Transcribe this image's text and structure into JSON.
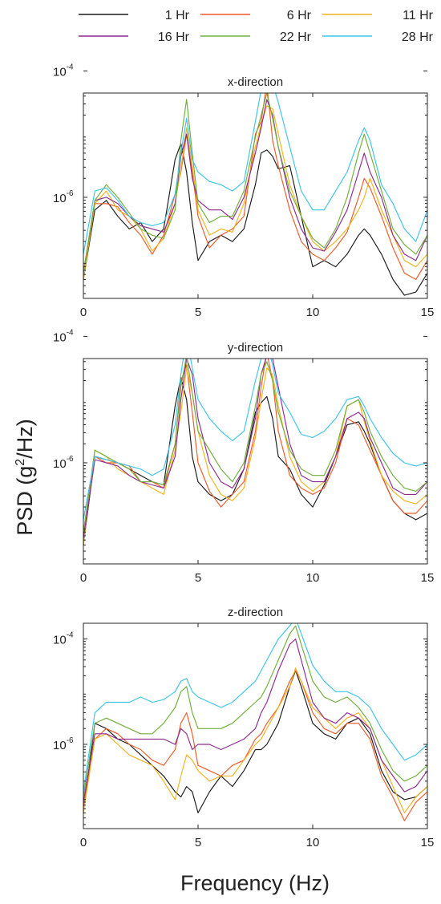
{
  "legend": {
    "entries": [
      {
        "name": "1 Hr",
        "color": "#1a1a1a"
      },
      {
        "name": "6 Hr",
        "color": "#ee5a28"
      },
      {
        "name": "11 Hr",
        "color": "#f2b21c"
      },
      {
        "name": "16 Hr",
        "color": "#8e2a8f"
      },
      {
        "name": "22 Hr",
        "color": "#6fae3a"
      },
      {
        "name": "28 Hr",
        "color": "#3cc4e8"
      }
    ]
  },
  "axes": {
    "ylabel": "PSD (g²/Hz)",
    "ylabel_base": "PSD (g",
    "ylabel_sup": "2",
    "ylabel_tail": "/Hz)",
    "xlabel": "Frequency (Hz)"
  },
  "chart_data": [
    {
      "type": "line",
      "title": "x-direction",
      "xlim": [
        0,
        15
      ],
      "ylim_log10": [
        -7.6,
        -4.35
      ],
      "y_scale": "log",
      "xticks": [
        0,
        5,
        10,
        15
      ],
      "yticks": [
        {
          "base": "10",
          "exp": "-6",
          "log10": -6
        },
        {
          "base": "10",
          "exp": "-4",
          "log10": -4
        }
      ],
      "x": [
        0,
        0.5,
        1,
        1.5,
        2,
        2.5,
        3,
        3.5,
        4,
        4.25,
        4.5,
        4.75,
        5,
        5.5,
        6,
        6.5,
        7,
        7.5,
        7.75,
        8,
        8.25,
        8.5,
        9,
        9.5,
        10,
        10.5,
        11,
        11.5,
        12,
        12.25,
        12.5,
        13,
        13.5,
        14,
        14.5,
        15
      ],
      "series": [
        {
          "name": "1 Hr",
          "log10_psd": [
            -7.3,
            -6.2,
            -6.05,
            -6.3,
            -6.5,
            -6.4,
            -6.7,
            -6.5,
            -5.4,
            -5.15,
            -5.6,
            -6.4,
            -7.0,
            -6.7,
            -6.6,
            -6.7,
            -6.5,
            -5.8,
            -5.3,
            -5.25,
            -5.35,
            -5.55,
            -5.5,
            -6.3,
            -7.1,
            -7.0,
            -7.1,
            -6.9,
            -6.6,
            -6.5,
            -6.6,
            -6.9,
            -7.3,
            -7.55,
            -7.5,
            -7.2
          ]
        },
        {
          "name": "6 Hr",
          "log10_psd": [
            -7.2,
            -6.1,
            -6.1,
            -6.15,
            -6.4,
            -6.6,
            -6.9,
            -6.6,
            -5.95,
            -5.6,
            -5.0,
            -5.6,
            -6.3,
            -6.8,
            -6.6,
            -6.5,
            -6.3,
            -5.0,
            -4.8,
            -4.2,
            -5.1,
            -5.5,
            -6.2,
            -6.7,
            -6.9,
            -7.0,
            -6.8,
            -6.55,
            -6.0,
            -5.7,
            -5.85,
            -6.3,
            -6.8,
            -7.2,
            -7.3,
            -7.0
          ]
        },
        {
          "name": "11 Hr",
          "log10_psd": [
            -7.3,
            -6.1,
            -5.9,
            -6.2,
            -6.3,
            -6.5,
            -6.85,
            -6.65,
            -6.1,
            -5.55,
            -4.9,
            -5.5,
            -6.2,
            -6.6,
            -6.5,
            -6.55,
            -6.1,
            -5.2,
            -4.85,
            -4.55,
            -4.6,
            -5.0,
            -5.8,
            -6.3,
            -6.7,
            -6.85,
            -6.7,
            -6.5,
            -6.2,
            -6.0,
            -5.7,
            -6.2,
            -6.6,
            -7.0,
            -7.1,
            -6.9
          ]
        },
        {
          "name": "16 Hr",
          "log10_psd": [
            -7.2,
            -6.05,
            -6.0,
            -6.1,
            -6.3,
            -6.45,
            -6.5,
            -6.55,
            -6.1,
            -5.35,
            -5.0,
            -5.7,
            -6.05,
            -6.2,
            -6.2,
            -6.35,
            -6.0,
            -5.3,
            -4.9,
            -4.45,
            -4.7,
            -5.2,
            -6.0,
            -6.5,
            -6.8,
            -6.85,
            -6.55,
            -6.2,
            -5.6,
            -5.3,
            -5.6,
            -6.0,
            -6.6,
            -6.9,
            -7.0,
            -6.6
          ]
        },
        {
          "name": "22 Hr",
          "log10_psd": [
            -7.2,
            -6.05,
            -5.8,
            -6.0,
            -6.25,
            -6.5,
            -6.6,
            -6.65,
            -6.2,
            -5.1,
            -4.45,
            -5.3,
            -6.1,
            -6.4,
            -6.3,
            -6.3,
            -5.9,
            -5.05,
            -4.7,
            -4.35,
            -4.75,
            -5.2,
            -5.9,
            -6.3,
            -6.65,
            -6.8,
            -6.5,
            -6.0,
            -5.3,
            -5.0,
            -5.3,
            -5.9,
            -6.5,
            -6.75,
            -6.9,
            -6.6
          ]
        },
        {
          "name": "28 Hr",
          "log10_psd": [
            -6.9,
            -5.9,
            -5.85,
            -6.05,
            -6.3,
            -6.4,
            -6.45,
            -6.4,
            -5.95,
            -5.3,
            -4.75,
            -5.4,
            -5.6,
            -5.75,
            -5.8,
            -5.9,
            -5.75,
            -4.8,
            -4.3,
            -4.0,
            -4.2,
            -4.5,
            -5.2,
            -5.9,
            -6.2,
            -6.2,
            -5.9,
            -5.6,
            -5.1,
            -4.9,
            -5.1,
            -5.8,
            -6.1,
            -6.5,
            -6.7,
            -6.2
          ]
        }
      ]
    },
    {
      "type": "line",
      "title": "y-direction",
      "xlim": [
        0,
        15
      ],
      "ylim_log10": [
        -7.6,
        -4.35
      ],
      "y_scale": "log",
      "xticks": [
        0,
        5,
        10,
        15
      ],
      "yticks": [
        {
          "base": "10",
          "exp": "-6",
          "log10": -6
        },
        {
          "base": "10",
          "exp": "-4",
          "log10": -4
        }
      ],
      "x": [
        0,
        0.5,
        1,
        1.5,
        2,
        2.5,
        3,
        3.5,
        4,
        4.25,
        4.5,
        4.75,
        5,
        5.5,
        6,
        6.5,
        7,
        7.5,
        7.75,
        8,
        8.25,
        8.5,
        9,
        9.5,
        10,
        10.5,
        11,
        11.5,
        12,
        12.25,
        12.5,
        13,
        13.5,
        14,
        14.5,
        15
      ],
      "series": [
        {
          "name": "1 Hr",
          "log10_psd": [
            -7.3,
            -5.9,
            -5.95,
            -6.0,
            -6.1,
            -6.2,
            -6.3,
            -6.35,
            -5.1,
            -4.65,
            -5.0,
            -5.9,
            -6.3,
            -6.5,
            -6.6,
            -6.5,
            -6.1,
            -5.2,
            -5.05,
            -4.95,
            -5.3,
            -5.9,
            -6.1,
            -6.5,
            -6.7,
            -6.35,
            -5.9,
            -5.4,
            -5.35,
            -5.5,
            -5.7,
            -6.2,
            -6.6,
            -6.8,
            -6.9,
            -6.8
          ]
        },
        {
          "name": "6 Hr",
          "log10_psd": [
            -7.2,
            -5.9,
            -6.0,
            -6.0,
            -6.05,
            -6.3,
            -6.3,
            -6.4,
            -5.7,
            -4.7,
            -4.45,
            -5.2,
            -6.0,
            -6.45,
            -6.7,
            -6.5,
            -6.3,
            -5.5,
            -4.8,
            -4.25,
            -4.7,
            -5.5,
            -6.2,
            -6.4,
            -6.5,
            -6.4,
            -6.0,
            -5.3,
            -5.4,
            -5.6,
            -5.8,
            -6.2,
            -6.6,
            -6.8,
            -6.8,
            -6.6
          ]
        },
        {
          "name": "11 Hr",
          "log10_psd": [
            -7.3,
            -5.8,
            -5.9,
            -6.1,
            -6.2,
            -6.3,
            -6.4,
            -6.5,
            -5.8,
            -5.2,
            -4.5,
            -4.9,
            -5.5,
            -6.2,
            -6.5,
            -6.6,
            -6.4,
            -5.6,
            -5.0,
            -4.5,
            -4.6,
            -5.1,
            -5.9,
            -6.3,
            -6.45,
            -6.3,
            -5.9,
            -5.1,
            -5.0,
            -5.35,
            -5.65,
            -6.2,
            -6.45,
            -6.6,
            -6.65,
            -6.5
          ]
        },
        {
          "name": "16 Hr",
          "log10_psd": [
            -7.2,
            -5.95,
            -6.0,
            -6.05,
            -6.2,
            -6.3,
            -6.35,
            -6.4,
            -5.9,
            -5.0,
            -4.35,
            -4.6,
            -5.3,
            -6.0,
            -6.3,
            -6.4,
            -6.1,
            -5.3,
            -4.6,
            -4.3,
            -4.35,
            -4.8,
            -5.7,
            -6.2,
            -6.3,
            -6.3,
            -5.9,
            -5.3,
            -5.2,
            -5.3,
            -5.6,
            -6.0,
            -6.4,
            -6.5,
            -6.5,
            -6.3
          ]
        },
        {
          "name": "22 Hr",
          "log10_psd": [
            -7.1,
            -5.8,
            -5.9,
            -6.0,
            -6.1,
            -6.3,
            -6.3,
            -6.35,
            -5.7,
            -4.8,
            -4.3,
            -4.9,
            -5.5,
            -5.8,
            -6.1,
            -6.3,
            -6.0,
            -5.1,
            -4.6,
            -4.4,
            -4.7,
            -5.2,
            -5.8,
            -6.1,
            -6.2,
            -6.2,
            -5.8,
            -5.1,
            -5.0,
            -5.2,
            -5.5,
            -5.9,
            -6.2,
            -6.4,
            -6.45,
            -6.3
          ]
        },
        {
          "name": "28 Hr",
          "log10_psd": [
            -6.9,
            -5.9,
            -5.95,
            -6.0,
            -6.05,
            -6.1,
            -6.2,
            -6.1,
            -5.4,
            -4.6,
            -4.0,
            -4.5,
            -5.0,
            -5.3,
            -5.5,
            -5.65,
            -5.5,
            -4.7,
            -4.35,
            -4.1,
            -4.45,
            -4.9,
            -5.2,
            -5.55,
            -5.6,
            -5.5,
            -5.3,
            -5.0,
            -4.95,
            -5.1,
            -5.3,
            -5.6,
            -5.85,
            -6.0,
            -6.05,
            -6.0
          ]
        }
      ]
    },
    {
      "type": "line",
      "title": "z-direction",
      "xlim": [
        0,
        15
      ],
      "ylim_log10": [
        -7.6,
        -3.7
      ],
      "y_scale": "log",
      "xticks": [
        0,
        5,
        10,
        15
      ],
      "yticks": [
        {
          "base": "10",
          "exp": "-6",
          "log10": -6
        },
        {
          "base": "10",
          "exp": "-4",
          "log10": -4
        }
      ],
      "x": [
        0,
        0.5,
        1,
        1.5,
        2,
        2.5,
        3,
        3.5,
        4,
        4.25,
        4.5,
        4.75,
        5,
        5.5,
        6,
        6.5,
        7,
        7.5,
        7.75,
        8,
        8.5,
        9,
        9.25,
        9.5,
        10,
        10.5,
        11,
        11.5,
        12,
        12.5,
        13,
        13.5,
        14,
        14.5,
        15
      ],
      "series": [
        {
          "name": "1 Hr",
          "log10_psd": [
            -7.3,
            -5.6,
            -5.7,
            -5.9,
            -6.0,
            -6.2,
            -6.4,
            -6.6,
            -6.9,
            -7.0,
            -6.8,
            -6.9,
            -7.3,
            -6.9,
            -6.6,
            -6.8,
            -6.5,
            -6.1,
            -6.1,
            -6.0,
            -5.6,
            -4.9,
            -4.6,
            -4.9,
            -5.6,
            -5.8,
            -5.9,
            -5.6,
            -5.5,
            -5.8,
            -6.5,
            -6.9,
            -7.05,
            -7.0,
            -6.8
          ]
        },
        {
          "name": "6 Hr",
          "log10_psd": [
            -7.2,
            -5.9,
            -5.7,
            -5.8,
            -6.0,
            -6.1,
            -6.3,
            -6.4,
            -6.1,
            -5.6,
            -5.4,
            -5.8,
            -6.4,
            -6.5,
            -6.6,
            -6.4,
            -6.3,
            -5.9,
            -5.8,
            -5.6,
            -5.3,
            -4.8,
            -4.6,
            -4.8,
            -5.4,
            -5.7,
            -5.8,
            -5.6,
            -5.6,
            -5.9,
            -6.6,
            -7.0,
            -7.45,
            -7.1,
            -6.9
          ]
        },
        {
          "name": "11 Hr",
          "log10_psd": [
            -7.3,
            -5.9,
            -5.8,
            -6.0,
            -6.2,
            -6.3,
            -6.4,
            -6.7,
            -7.05,
            -6.6,
            -6.2,
            -6.3,
            -6.5,
            -6.7,
            -6.6,
            -6.6,
            -6.3,
            -6.0,
            -5.9,
            -5.7,
            -5.3,
            -4.9,
            -4.55,
            -4.8,
            -5.3,
            -5.5,
            -5.7,
            -5.5,
            -5.4,
            -5.7,
            -6.3,
            -6.8,
            -7.3,
            -7.0,
            -6.8
          ]
        },
        {
          "name": "16 Hr",
          "log10_psd": [
            -7.1,
            -5.8,
            -5.8,
            -5.9,
            -5.9,
            -5.9,
            -5.9,
            -5.9,
            -6.0,
            -5.7,
            -5.8,
            -6.1,
            -6.0,
            -6.0,
            -6.1,
            -6.0,
            -5.9,
            -5.7,
            -5.4,
            -5.2,
            -4.6,
            -4.1,
            -4.0,
            -4.4,
            -5.2,
            -5.5,
            -5.6,
            -5.4,
            -5.5,
            -5.7,
            -6.3,
            -6.6,
            -6.9,
            -6.8,
            -6.5
          ]
        },
        {
          "name": "22 Hr",
          "log10_psd": [
            -7.0,
            -5.6,
            -5.5,
            -5.6,
            -5.7,
            -5.8,
            -5.8,
            -5.6,
            -5.3,
            -5.0,
            -4.9,
            -5.4,
            -5.7,
            -5.7,
            -5.7,
            -5.6,
            -5.4,
            -5.2,
            -5.1,
            -4.9,
            -4.4,
            -3.9,
            -3.75,
            -4.1,
            -4.8,
            -5.1,
            -5.2,
            -5.1,
            -5.3,
            -5.6,
            -6.1,
            -6.5,
            -6.7,
            -6.6,
            -6.4
          ]
        },
        {
          "name": "28 Hr",
          "log10_psd": [
            -6.9,
            -5.4,
            -5.2,
            -5.2,
            -5.2,
            -5.1,
            -5.2,
            -5.15,
            -5.0,
            -4.8,
            -4.75,
            -5.0,
            -5.1,
            -5.2,
            -5.3,
            -5.2,
            -5.0,
            -4.8,
            -4.6,
            -4.4,
            -4.0,
            -3.75,
            -3.6,
            -3.9,
            -4.5,
            -4.8,
            -5.0,
            -5.0,
            -5.1,
            -5.3,
            -5.7,
            -6.0,
            -6.3,
            -6.2,
            -6.0
          ]
        }
      ]
    }
  ]
}
